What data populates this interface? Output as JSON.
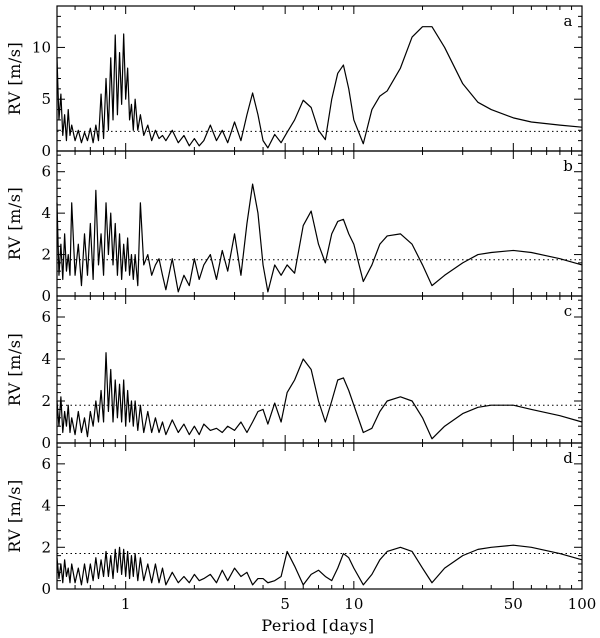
{
  "chart_data": {
    "type": "line",
    "xlabel": "Period [days]",
    "xscale": "log",
    "xlim": [
      0.5,
      100
    ],
    "x_tick_labels": [
      {
        "value": 1,
        "label": "1"
      },
      {
        "value": 5,
        "label": "5"
      },
      {
        "value": 10,
        "label": "10"
      },
      {
        "value": 50,
        "label": "50"
      },
      {
        "value": 100,
        "label": "100"
      }
    ],
    "panels": [
      {
        "label": "a",
        "ylabel": "RV [m/s]",
        "ylim": [
          0,
          14
        ],
        "y_ticks": [
          0,
          5,
          10
        ],
        "threshold": 1.9,
        "series": {
          "x": [
            0.5,
            0.51,
            0.52,
            0.53,
            0.54,
            0.55,
            0.56,
            0.57,
            0.58,
            0.6,
            0.62,
            0.64,
            0.66,
            0.68,
            0.7,
            0.72,
            0.74,
            0.76,
            0.78,
            0.8,
            0.82,
            0.84,
            0.86,
            0.88,
            0.9,
            0.92,
            0.94,
            0.96,
            0.98,
            1.0,
            1.02,
            1.04,
            1.06,
            1.08,
            1.1,
            1.13,
            1.16,
            1.2,
            1.25,
            1.3,
            1.35,
            1.4,
            1.45,
            1.5,
            1.6,
            1.7,
            1.8,
            1.9,
            2.0,
            2.1,
            2.2,
            2.35,
            2.5,
            2.65,
            2.8,
            3.0,
            3.2,
            3.4,
            3.6,
            3.8,
            4.0,
            4.2,
            4.5,
            4.8,
            5.1,
            5.5,
            6.0,
            6.5,
            7.0,
            7.5,
            8.0,
            8.5,
            9.0,
            9.5,
            10.0,
            11.0,
            12.0,
            13.0,
            14.0,
            16.0,
            18.0,
            20.0,
            22.0,
            25.0,
            30.0,
            35.0,
            40.0,
            50.0,
            60.0,
            80.0,
            100.0
          ],
          "y": [
            9.0,
            3.0,
            5.5,
            1.5,
            3.5,
            1.0,
            4.0,
            1.5,
            2.5,
            1.0,
            2.0,
            0.8,
            1.8,
            1.0,
            2.2,
            0.8,
            2.5,
            1.0,
            5.5,
            1.2,
            7.0,
            2.0,
            9.0,
            3.0,
            11.2,
            3.5,
            9.5,
            4.5,
            11.3,
            5.0,
            8.0,
            3.0,
            4.5,
            2.0,
            5.0,
            2.0,
            3.5,
            1.5,
            2.5,
            1.0,
            2.0,
            1.2,
            1.5,
            1.0,
            2.0,
            0.8,
            1.5,
            0.5,
            1.2,
            0.5,
            1.0,
            2.5,
            1.0,
            2.0,
            0.8,
            2.8,
            1.0,
            3.5,
            5.6,
            3.5,
            1.0,
            0.3,
            1.6,
            0.8,
            1.8,
            3.0,
            4.9,
            4.2,
            2.0,
            1.1,
            5.0,
            7.5,
            8.3,
            6.0,
            3.0,
            0.7,
            4.0,
            5.3,
            5.8,
            8.0,
            11.0,
            12.0,
            12.0,
            10.0,
            6.5,
            4.7,
            4.0,
            3.2,
            2.8,
            2.5,
            2.3
          ]
        }
      },
      {
        "label": "b",
        "ylabel": "RV [m/s]",
        "ylim": [
          0,
          7
        ],
        "y_ticks": [
          0,
          2,
          4,
          6
        ],
        "threshold": 1.75,
        "series": {
          "x": [
            0.5,
            0.51,
            0.52,
            0.53,
            0.54,
            0.55,
            0.56,
            0.57,
            0.58,
            0.6,
            0.62,
            0.64,
            0.66,
            0.68,
            0.7,
            0.72,
            0.74,
            0.76,
            0.78,
            0.8,
            0.82,
            0.84,
            0.86,
            0.88,
            0.9,
            0.92,
            0.94,
            0.96,
            0.98,
            1.0,
            1.02,
            1.04,
            1.06,
            1.08,
            1.1,
            1.13,
            1.16,
            1.2,
            1.25,
            1.3,
            1.35,
            1.4,
            1.45,
            1.5,
            1.6,
            1.7,
            1.8,
            1.9,
            2.0,
            2.1,
            2.2,
            2.35,
            2.5,
            2.65,
            2.8,
            3.0,
            3.2,
            3.4,
            3.6,
            3.8,
            4.0,
            4.2,
            4.5,
            4.8,
            5.1,
            5.5,
            6.0,
            6.5,
            7.0,
            7.5,
            8.0,
            8.5,
            9.0,
            9.5,
            10.0,
            11.0,
            12.0,
            13.0,
            14.0,
            16.0,
            18.0,
            20.0,
            22.0,
            25.0,
            30.0,
            35.0,
            40.0,
            50.0,
            60.0,
            80.0,
            100.0
          ],
          "y": [
            4.5,
            1.0,
            2.5,
            0.8,
            3.0,
            1.2,
            2.0,
            1.0,
            4.5,
            1.0,
            2.5,
            0.5,
            3.0,
            1.0,
            3.5,
            0.8,
            5.1,
            1.5,
            3.0,
            1.0,
            4.5,
            2.0,
            4.0,
            1.5,
            3.5,
            1.0,
            3.0,
            0.8,
            2.5,
            1.2,
            2.8,
            1.0,
            2.0,
            0.8,
            2.0,
            0.5,
            4.5,
            1.5,
            2.0,
            1.0,
            1.5,
            1.8,
            1.0,
            0.3,
            1.8,
            0.2,
            1.0,
            0.5,
            1.8,
            0.8,
            1.5,
            2.0,
            0.8,
            2.2,
            1.2,
            3.0,
            1.0,
            3.5,
            5.4,
            4.0,
            1.5,
            0.2,
            1.5,
            1.0,
            1.5,
            1.1,
            3.4,
            4.1,
            2.5,
            1.6,
            3.0,
            3.6,
            3.7,
            3.0,
            2.5,
            0.7,
            1.5,
            2.5,
            2.9,
            3.0,
            2.5,
            1.5,
            0.5,
            1.0,
            1.6,
            2.0,
            2.1,
            2.2,
            2.1,
            1.8,
            1.5
          ]
        }
      },
      {
        "label": "c",
        "ylabel": "RV [m/s]",
        "ylim": [
          0,
          7
        ],
        "y_ticks": [
          0,
          2,
          4,
          6
        ],
        "threshold": 1.8,
        "series": {
          "x": [
            0.5,
            0.51,
            0.52,
            0.53,
            0.54,
            0.55,
            0.56,
            0.57,
            0.58,
            0.6,
            0.62,
            0.64,
            0.66,
            0.68,
            0.7,
            0.72,
            0.74,
            0.76,
            0.78,
            0.8,
            0.82,
            0.84,
            0.86,
            0.88,
            0.9,
            0.92,
            0.94,
            0.96,
            0.98,
            1.0,
            1.02,
            1.04,
            1.06,
            1.08,
            1.1,
            1.13,
            1.16,
            1.2,
            1.25,
            1.3,
            1.35,
            1.4,
            1.45,
            1.5,
            1.6,
            1.7,
            1.8,
            1.9,
            2.0,
            2.1,
            2.2,
            2.35,
            2.5,
            2.65,
            2.8,
            3.0,
            3.2,
            3.4,
            3.6,
            3.8,
            4.0,
            4.2,
            4.5,
            4.8,
            5.1,
            5.5,
            6.0,
            6.5,
            7.0,
            7.5,
            8.0,
            8.5,
            9.0,
            9.5,
            10.0,
            11.0,
            12.0,
            13.0,
            14.0,
            16.0,
            18.0,
            20.0,
            22.0,
            25.0,
            30.0,
            35.0,
            40.0,
            50.0,
            60.0,
            80.0,
            100.0
          ],
          "y": [
            2.0,
            0.8,
            2.2,
            0.5,
            1.5,
            0.8,
            1.8,
            0.5,
            1.2,
            0.4,
            1.5,
            0.5,
            1.2,
            0.3,
            1.5,
            0.8,
            2.0,
            1.0,
            2.5,
            1.0,
            4.3,
            1.5,
            3.5,
            1.0,
            3.0,
            1.2,
            2.8,
            1.0,
            3.0,
            0.8,
            2.5,
            1.0,
            2.0,
            0.8,
            2.0,
            0.6,
            1.8,
            0.5,
            1.5,
            0.5,
            1.2,
            0.5,
            1.0,
            0.4,
            1.1,
            0.5,
            0.9,
            0.4,
            0.8,
            0.4,
            0.9,
            0.6,
            0.7,
            0.5,
            0.8,
            0.6,
            1.0,
            0.5,
            1.0,
            1.5,
            1.6,
            0.9,
            1.9,
            1.0,
            2.4,
            3.0,
            4.0,
            3.5,
            2.0,
            1.0,
            2.0,
            3.0,
            3.1,
            2.5,
            1.8,
            0.5,
            0.7,
            1.5,
            2.0,
            2.2,
            2.0,
            1.2,
            0.2,
            0.8,
            1.4,
            1.7,
            1.8,
            1.8,
            1.6,
            1.3,
            1.0
          ]
        }
      },
      {
        "label": "d",
        "ylabel": "RV [m/s]",
        "ylim": [
          0,
          7
        ],
        "y_ticks": [
          0,
          2,
          4,
          6
        ],
        "threshold": 1.7,
        "series": {
          "x": [
            0.5,
            0.51,
            0.52,
            0.53,
            0.54,
            0.55,
            0.56,
            0.57,
            0.58,
            0.6,
            0.62,
            0.64,
            0.66,
            0.68,
            0.7,
            0.72,
            0.74,
            0.76,
            0.78,
            0.8,
            0.82,
            0.84,
            0.86,
            0.88,
            0.9,
            0.92,
            0.94,
            0.96,
            0.98,
            1.0,
            1.02,
            1.04,
            1.06,
            1.08,
            1.1,
            1.13,
            1.16,
            1.2,
            1.25,
            1.3,
            1.35,
            1.4,
            1.45,
            1.5,
            1.6,
            1.7,
            1.8,
            1.9,
            2.0,
            2.1,
            2.2,
            2.35,
            2.5,
            2.65,
            2.8,
            3.0,
            3.2,
            3.4,
            3.6,
            3.8,
            4.0,
            4.2,
            4.5,
            4.8,
            5.1,
            5.5,
            6.0,
            6.5,
            7.0,
            7.5,
            8.0,
            8.5,
            9.0,
            9.5,
            10.0,
            11.0,
            12.0,
            13.0,
            14.0,
            16.0,
            18.0,
            20.0,
            22.0,
            25.0,
            30.0,
            35.0,
            40.0,
            50.0,
            60.0,
            80.0,
            100.0
          ],
          "y": [
            1.5,
            0.5,
            1.2,
            0.3,
            1.4,
            0.6,
            1.0,
            0.3,
            1.2,
            0.3,
            1.0,
            0.2,
            1.2,
            0.3,
            1.2,
            0.4,
            1.5,
            0.5,
            1.4,
            0.6,
            1.8,
            0.6,
            1.6,
            0.5,
            1.9,
            0.8,
            2.0,
            0.7,
            1.9,
            0.6,
            1.8,
            0.5,
            1.6,
            0.6,
            1.7,
            0.4,
            1.5,
            0.4,
            1.2,
            0.3,
            1.2,
            0.3,
            1.0,
            0.2,
            0.8,
            0.3,
            0.6,
            0.3,
            0.7,
            0.4,
            0.5,
            0.7,
            0.3,
            0.9,
            0.4,
            1.0,
            0.6,
            0.8,
            0.2,
            0.5,
            0.5,
            0.3,
            0.4,
            0.6,
            1.8,
            1.1,
            0.2,
            0.7,
            0.9,
            0.6,
            0.4,
            1.0,
            1.7,
            1.5,
            1.0,
            0.2,
            0.7,
            1.4,
            1.8,
            2.0,
            1.8,
            1.0,
            0.3,
            1.0,
            1.6,
            1.9,
            2.0,
            2.1,
            2.0,
            1.7,
            1.4
          ]
        }
      }
    ]
  }
}
